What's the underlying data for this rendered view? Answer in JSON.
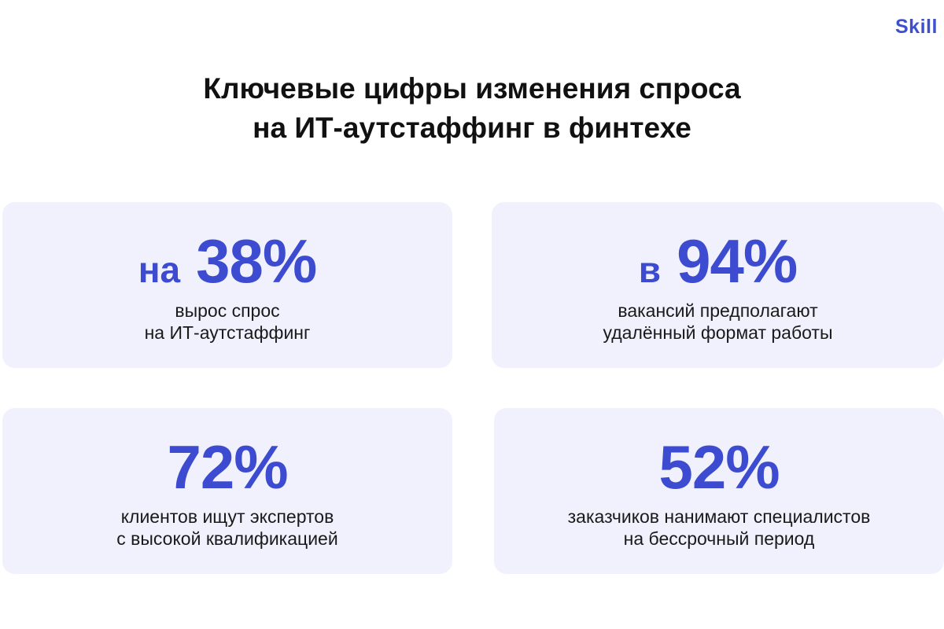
{
  "logo": "Skill",
  "title": {
    "line1": "Ключевые цифры изменения спроса",
    "line2": "на ИТ-аутстаффинг в финтехе"
  },
  "cards": [
    {
      "prefix": "на",
      "value": "38%",
      "desc_line1": "вырос спрос",
      "desc_line2": "на ИТ-аутстаффинг"
    },
    {
      "prefix": "в",
      "value": "94%",
      "desc_line1": "вакансий предполагают",
      "desc_line2": "удалённый формат работы"
    },
    {
      "prefix": "",
      "value": "72%",
      "desc_line1": "клиентов ищут экспертов",
      "desc_line2": "с высокой квалификацией"
    },
    {
      "prefix": "",
      "value": "52%",
      "desc_line1": "заказчиков нанимают специалистов",
      "desc_line2": "на бессрочный период"
    }
  ],
  "colors": {
    "accent": "#3d4bd1",
    "card_background": "#f0f1fd",
    "text": "#111111"
  }
}
